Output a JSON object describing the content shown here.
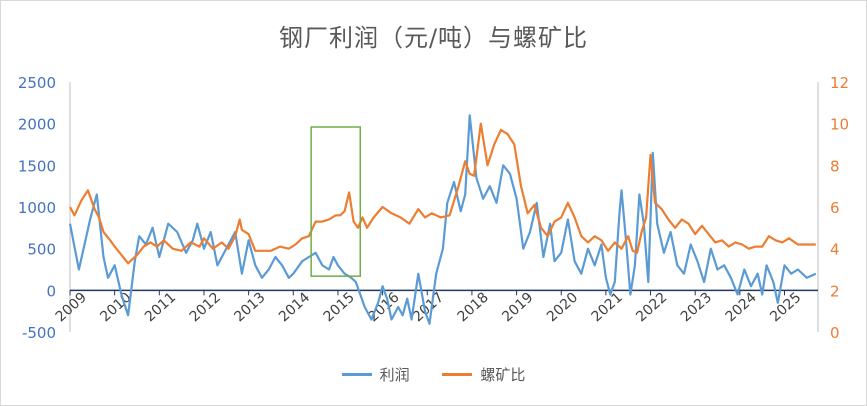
{
  "colors": {
    "profit": "#5b9bd5",
    "ratio": "#ed7d31",
    "left_axis_text": "#4472c4",
    "right_axis_text": "#ed7d31",
    "highlight_box": "#70ad47",
    "axis_line": "#1f3864"
  },
  "chart_data": {
    "type": "line",
    "title": "钢厂利润（元/吨）与螺矿比",
    "x_tick_labels": [
      "2009",
      "2010",
      "2011",
      "2012",
      "2013",
      "2014",
      "2015",
      "2016",
      "2017",
      "2018",
      "2019",
      "2020",
      "2021",
      "2022",
      "2023",
      "2024",
      "2025"
    ],
    "x_range": [
      2009.0,
      2025.75
    ],
    "y_left": {
      "min": -500,
      "max": 2500,
      "ticks": [
        "-500",
        "0",
        "500",
        "1000",
        "1500",
        "2000",
        "2500"
      ]
    },
    "y_right": {
      "min": 0,
      "max": 12,
      "ticks": [
        "0",
        "2",
        "4",
        "6",
        "8",
        "10",
        "12"
      ]
    },
    "grid": false,
    "legend_position": "bottom",
    "highlight_box": {
      "x_range": [
        2014.4,
        2015.5
      ],
      "y_left_range": [
        170,
        1960
      ]
    },
    "series": [
      {
        "name": "利润",
        "axis": "left",
        "x": [
          2009.0,
          2009.2,
          2009.45,
          2009.6,
          2009.75,
          2009.85,
          2010.0,
          2010.15,
          2010.3,
          2010.45,
          2010.55,
          2010.7,
          2010.85,
          2011.0,
          2011.2,
          2011.4,
          2011.6,
          2011.75,
          2011.85,
          2012.0,
          2012.15,
          2012.3,
          2012.5,
          2012.7,
          2012.85,
          2013.0,
          2013.15,
          2013.3,
          2013.45,
          2013.6,
          2013.75,
          2013.9,
          2014.0,
          2014.2,
          2014.35,
          2014.5,
          2014.65,
          2014.8,
          2014.9,
          2015.0,
          2015.15,
          2015.3,
          2015.4,
          2015.5,
          2015.6,
          2015.75,
          2015.9,
          2016.0,
          2016.1,
          2016.2,
          2016.35,
          2016.45,
          2016.55,
          2016.65,
          2016.8,
          2016.95,
          2017.05,
          2017.2,
          2017.35,
          2017.45,
          2017.6,
          2017.75,
          2017.85,
          2017.95,
          2018.1,
          2018.25,
          2018.4,
          2018.55,
          2018.7,
          2018.85,
          2019.0,
          2019.15,
          2019.3,
          2019.45,
          2019.6,
          2019.75,
          2019.85,
          2020.0,
          2020.15,
          2020.3,
          2020.45,
          2020.6,
          2020.75,
          2020.9,
          2021.0,
          2021.1,
          2021.2,
          2021.3,
          2021.35,
          2021.45,
          2021.55,
          2021.65,
          2021.75,
          2021.85,
          2021.95,
          2022.05,
          2022.15,
          2022.3,
          2022.45,
          2022.6,
          2022.75,
          2022.9,
          2023.05,
          2023.2,
          2023.35,
          2023.5,
          2023.65,
          2023.8,
          2023.95,
          2024.1,
          2024.25,
          2024.4,
          2024.5,
          2024.6,
          2024.75,
          2024.85,
          2025.0,
          2025.15,
          2025.3,
          2025.5,
          2025.7
        ],
        "values": [
          800,
          250,
          850,
          1150,
          400,
          150,
          300,
          -50,
          -300,
          350,
          650,
          550,
          750,
          400,
          800,
          700,
          450,
          600,
          800,
          500,
          700,
          300,
          500,
          700,
          200,
          600,
          300,
          150,
          250,
          400,
          300,
          150,
          200,
          350,
          400,
          450,
          300,
          250,
          400,
          300,
          200,
          150,
          100,
          -50,
          -200,
          -350,
          -150,
          50,
          -100,
          -350,
          -200,
          -300,
          -100,
          -350,
          200,
          -250,
          -400,
          200,
          500,
          1050,
          1300,
          950,
          1150,
          2100,
          1350,
          1100,
          1250,
          1050,
          1500,
          1400,
          1100,
          500,
          700,
          1050,
          400,
          800,
          350,
          450,
          850,
          350,
          200,
          500,
          300,
          550,
          150,
          -50,
          100,
          900,
          1200,
          600,
          -50,
          300,
          1150,
          800,
          100,
          1650,
          800,
          450,
          700,
          300,
          200,
          550,
          350,
          100,
          500,
          250,
          300,
          150,
          -50,
          250,
          50,
          200,
          -50,
          300,
          100,
          -150,
          300,
          200,
          250,
          150,
          200
        ]
      },
      {
        "name": "螺矿比",
        "axis": "right",
        "x": [
          2009.0,
          2009.1,
          2009.25,
          2009.4,
          2009.55,
          2009.65,
          2009.75,
          2009.9,
          2010.0,
          2010.15,
          2010.3,
          2010.5,
          2010.65,
          2010.8,
          2010.95,
          2011.1,
          2011.3,
          2011.5,
          2011.7,
          2011.9,
          2012.0,
          2012.2,
          2012.4,
          2012.55,
          2012.7,
          2012.8,
          2012.85,
          2013.0,
          2013.15,
          2013.3,
          2013.5,
          2013.7,
          2013.9,
          2014.05,
          2014.2,
          2014.35,
          2014.5,
          2014.65,
          2014.8,
          2014.95,
          2015.05,
          2015.15,
          2015.25,
          2015.35,
          2015.45,
          2015.55,
          2015.65,
          2015.8,
          2016.0,
          2016.2,
          2016.4,
          2016.6,
          2016.8,
          2016.95,
          2017.1,
          2017.3,
          2017.5,
          2017.7,
          2017.85,
          2017.95,
          2018.05,
          2018.2,
          2018.35,
          2018.5,
          2018.65,
          2018.8,
          2018.95,
          2019.1,
          2019.25,
          2019.4,
          2019.55,
          2019.7,
          2019.85,
          2020.0,
          2020.15,
          2020.3,
          2020.45,
          2020.6,
          2020.75,
          2020.9,
          2021.05,
          2021.2,
          2021.35,
          2021.5,
          2021.6,
          2021.7,
          2021.8,
          2021.9,
          2022.0,
          2022.1,
          2022.25,
          2022.4,
          2022.55,
          2022.7,
          2022.85,
          2023.0,
          2023.15,
          2023.3,
          2023.45,
          2023.6,
          2023.75,
          2023.9,
          2024.05,
          2024.2,
          2024.35,
          2024.5,
          2024.65,
          2024.8,
          2024.95,
          2025.1,
          2025.3,
          2025.5,
          2025.7
        ],
        "values": [
          6.0,
          5.6,
          6.3,
          6.8,
          5.9,
          5.5,
          4.8,
          4.4,
          4.1,
          3.7,
          3.3,
          3.7,
          4.1,
          4.3,
          4.1,
          4.4,
          4.0,
          3.9,
          4.3,
          4.1,
          4.5,
          4.0,
          4.3,
          4.0,
          4.6,
          5.4,
          4.9,
          4.7,
          3.9,
          3.9,
          3.9,
          4.1,
          4.0,
          4.2,
          4.5,
          4.6,
          5.3,
          5.3,
          5.4,
          5.6,
          5.6,
          5.8,
          6.7,
          5.3,
          5.0,
          5.5,
          5.0,
          5.5,
          6.0,
          5.7,
          5.5,
          5.2,
          5.9,
          5.5,
          5.7,
          5.5,
          5.6,
          7.0,
          8.2,
          7.6,
          7.5,
          10.0,
          8.0,
          9.0,
          9.7,
          9.5,
          9.0,
          7.0,
          5.7,
          6.1,
          5.0,
          4.6,
          5.3,
          5.5,
          6.2,
          5.5,
          4.6,
          4.3,
          4.6,
          4.4,
          3.9,
          4.3,
          4.0,
          4.6,
          3.9,
          3.8,
          4.8,
          5.5,
          8.5,
          6.2,
          5.9,
          5.4,
          5.0,
          5.4,
          5.2,
          4.7,
          5.1,
          4.7,
          4.3,
          4.4,
          4.1,
          4.3,
          4.2,
          4.0,
          4.1,
          4.1,
          4.6,
          4.4,
          4.3,
          4.5,
          4.2,
          4.2,
          4.2
        ]
      }
    ]
  },
  "legend": {
    "profit_label": "利润",
    "ratio_label": "螺矿比"
  }
}
